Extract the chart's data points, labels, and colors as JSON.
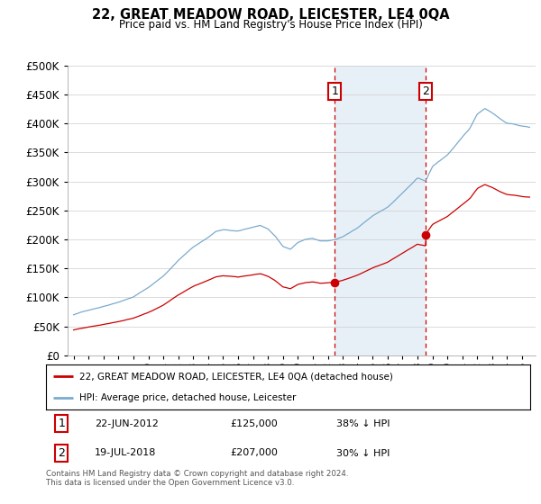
{
  "title": "22, GREAT MEADOW ROAD, LEICESTER, LE4 0QA",
  "subtitle": "Price paid vs. HM Land Registry's House Price Index (HPI)",
  "legend_line1": "22, GREAT MEADOW ROAD, LEICESTER, LE4 0QA (detached house)",
  "legend_line2": "HPI: Average price, detached house, Leicester",
  "transaction1_label": "1",
  "transaction1_date": "22-JUN-2012",
  "transaction1_price": "£125,000",
  "transaction1_pct": "38% ↓ HPI",
  "transaction1_x": 2012.47,
  "transaction1_y": 125000,
  "transaction2_label": "2",
  "transaction2_date": "19-JUL-2018",
  "transaction2_price": "£207,000",
  "transaction2_pct": "30% ↓ HPI",
  "transaction2_x": 2018.54,
  "transaction2_y": 207000,
  "footer": "Contains HM Land Registry data © Crown copyright and database right 2024.\nThis data is licensed under the Open Government Licence v3.0.",
  "red_line_color": "#cc0000",
  "blue_line_color": "#7aabcf",
  "vline_color": "#cc0000",
  "plot_bg_color": "#ffffff",
  "shade_color": "#ddeaf5",
  "ylim": [
    0,
    500000
  ],
  "yticks": [
    0,
    50000,
    100000,
    150000,
    200000,
    250000,
    300000,
    350000,
    400000,
    450000,
    500000
  ],
  "xlim_left": 1994.6,
  "xlim_right": 2025.9
}
